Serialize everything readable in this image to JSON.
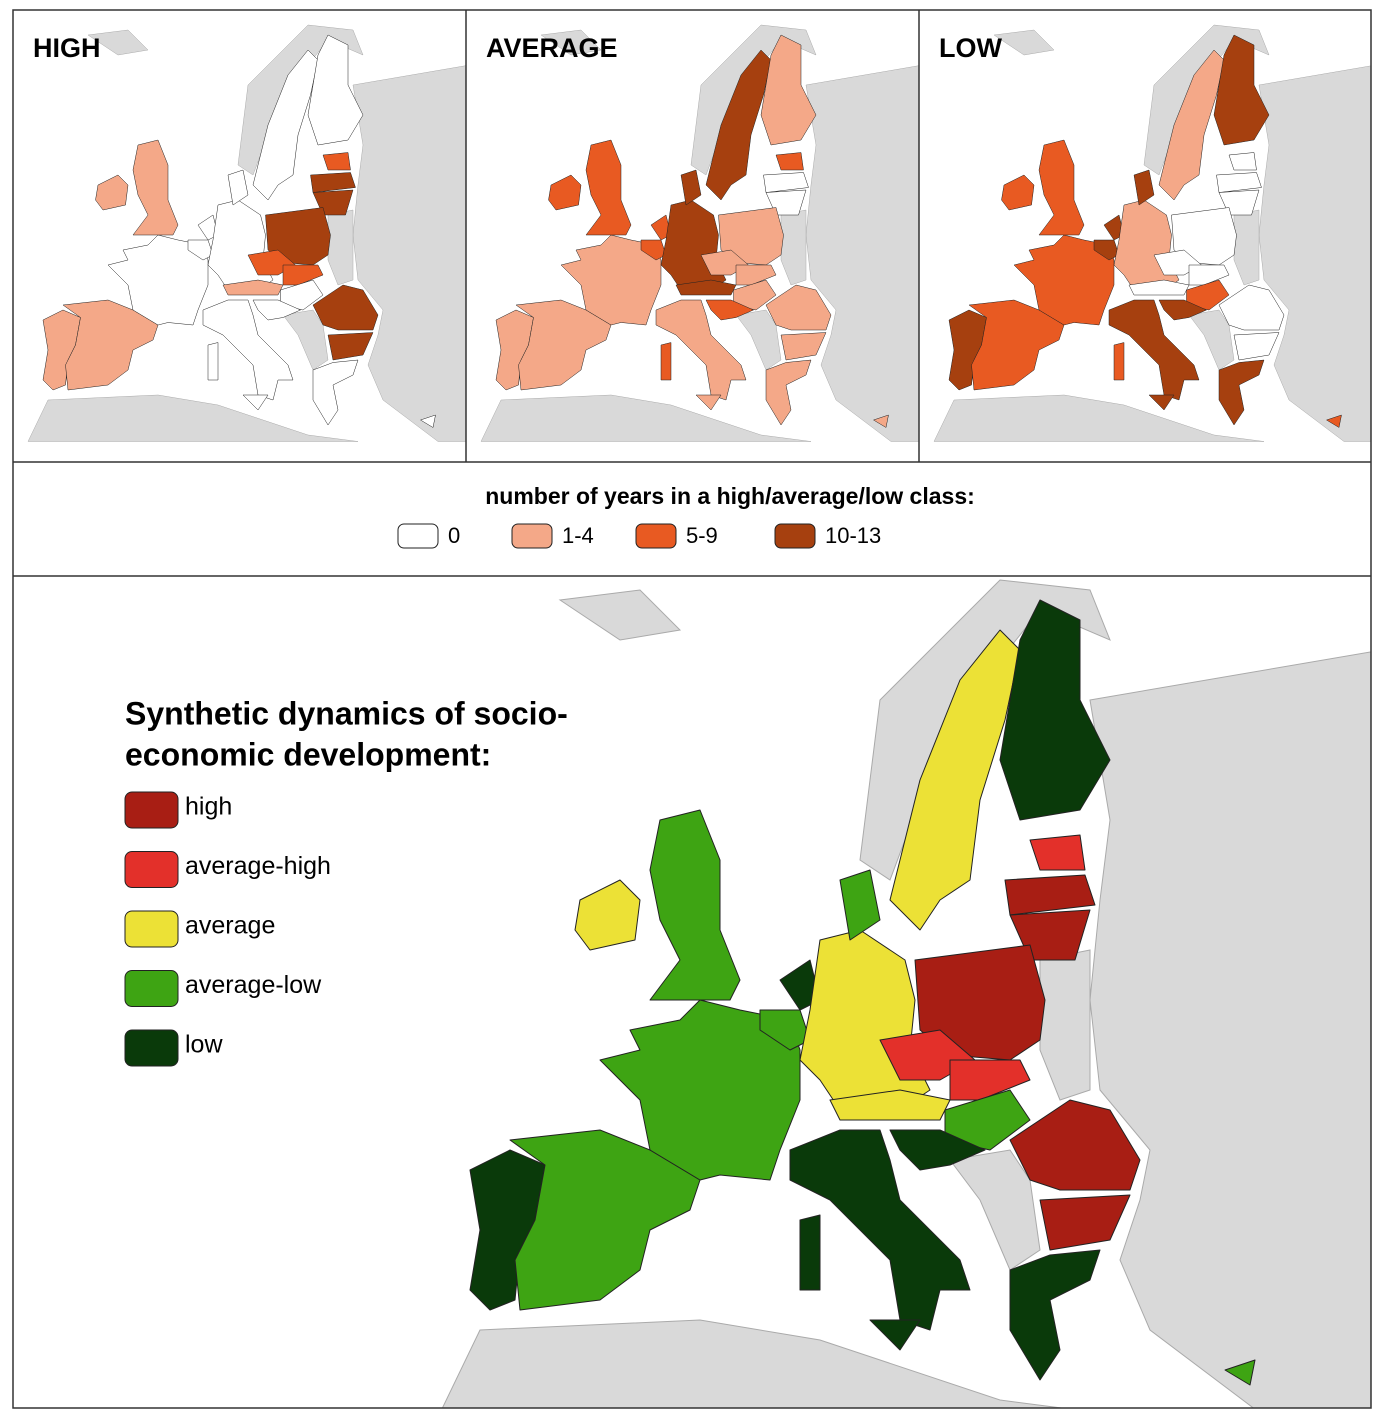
{
  "panels": [
    {
      "title": "HIGH"
    },
    {
      "title": "AVERAGE"
    },
    {
      "title": "LOW"
    }
  ],
  "years_legend": {
    "title": "number of years in a high/average/low class:",
    "items": [
      {
        "label": "0",
        "color": "#ffffff"
      },
      {
        "label": "1-4",
        "color": "#f4a888"
      },
      {
        "label": "5-9",
        "color": "#e85a22"
      },
      {
        "label": "10-13",
        "color": "#a6400f"
      }
    ]
  },
  "dynamics_legend": {
    "title": [
      "Synthetic dynamics of socio-",
      "economic development:"
    ],
    "items": [
      {
        "label": "high",
        "color": "#a81e14"
      },
      {
        "label": "average-high",
        "color": "#e3302a"
      },
      {
        "label": "average",
        "color": "#ece136"
      },
      {
        "label": "average-low",
        "color": "#3ea413"
      },
      {
        "label": "low",
        "color": "#0a3a0a"
      }
    ]
  }
}
